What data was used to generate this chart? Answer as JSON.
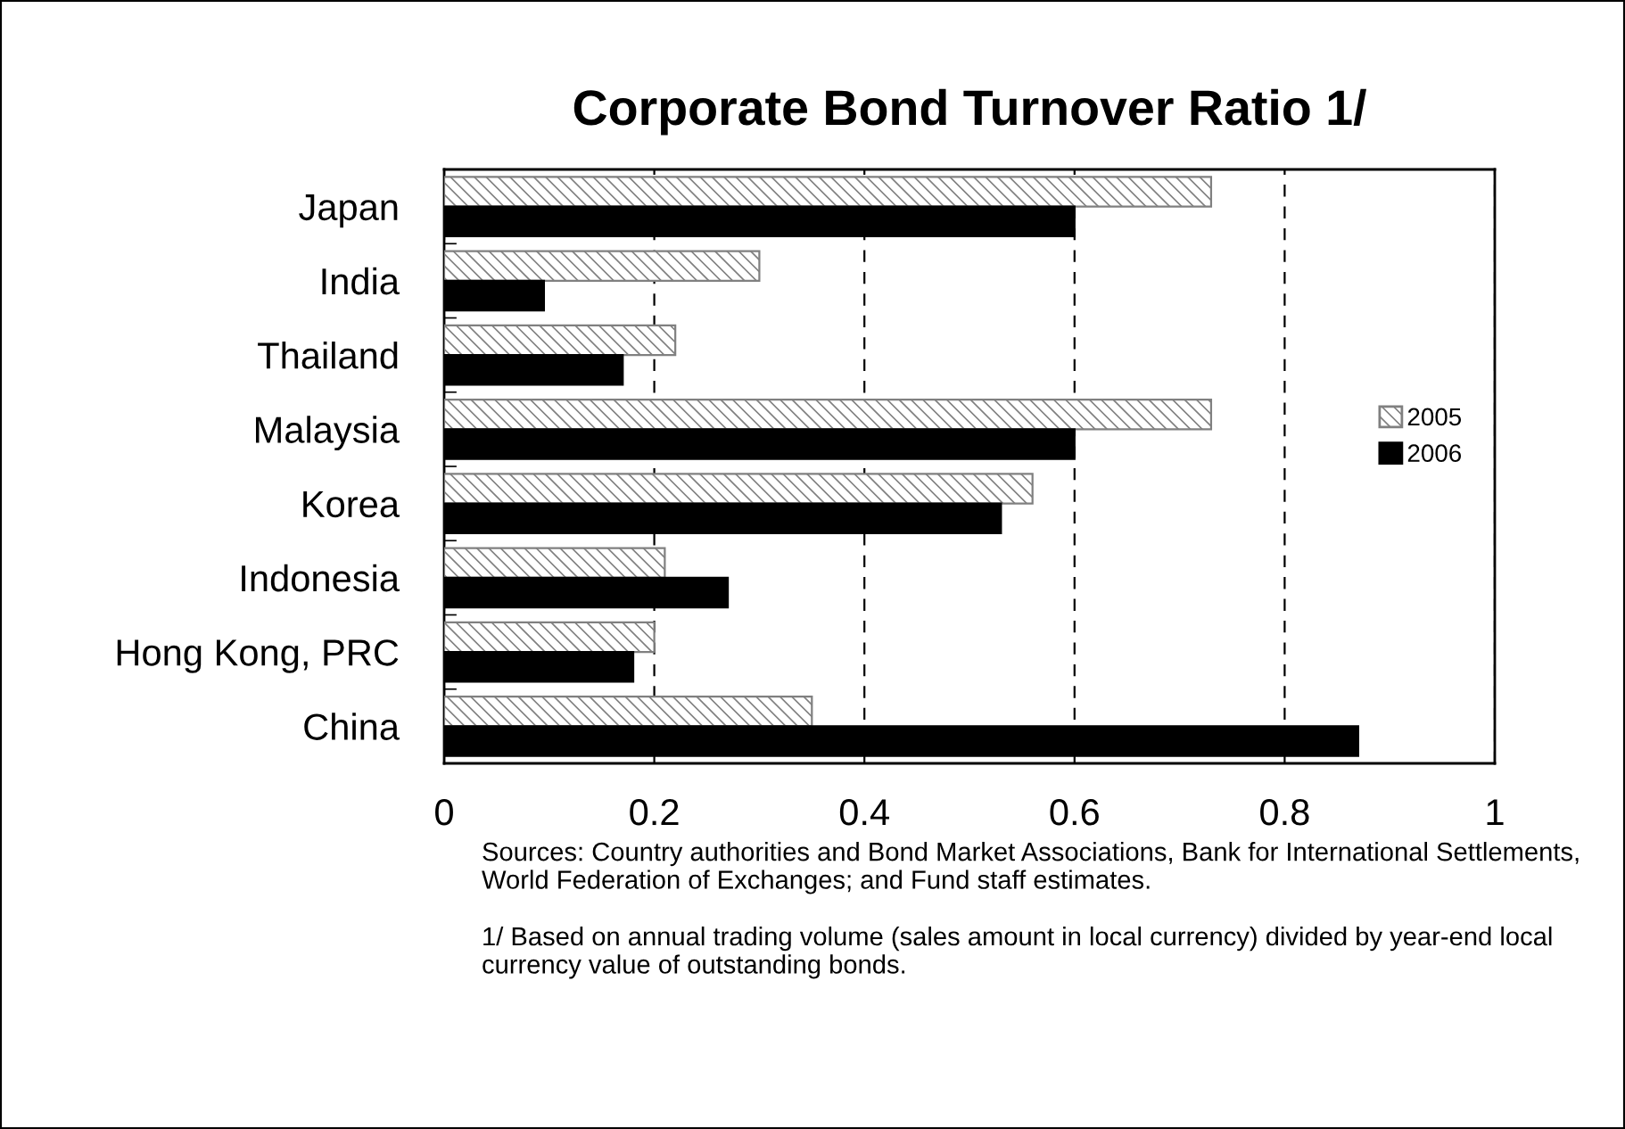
{
  "chart_data": {
    "type": "bar",
    "orientation": "horizontal",
    "title": "Corporate Bond Turnover Ratio 1/",
    "categories": [
      "Japan",
      "India",
      "Thailand",
      "Malaysia",
      "Korea",
      "Indonesia",
      "Hong Kong, PRC",
      "China"
    ],
    "series": [
      {
        "name": "2005",
        "color": "#808080",
        "values": [
          0.73,
          0.3,
          0.22,
          0.73,
          0.56,
          0.21,
          0.2,
          0.35
        ]
      },
      {
        "name": "2006",
        "color": "#000000",
        "values": [
          0.6,
          0.095,
          0.17,
          0.6,
          0.53,
          0.27,
          0.18,
          0.87
        ]
      }
    ],
    "xlim": [
      0,
      1
    ],
    "xticks": [
      0,
      0.2,
      0.4,
      0.6,
      0.8,
      1
    ],
    "grid": "x",
    "legend": "right",
    "annotations": [
      "Sources: Country authorities and Bond Market Associations, Bank for International Settlements, World Federation of Exchanges; and Fund staff estimates.",
      "1/ Based on annual trading volume (sales amount in local currency) divided by year-end local currency value of outstanding bonds."
    ]
  }
}
